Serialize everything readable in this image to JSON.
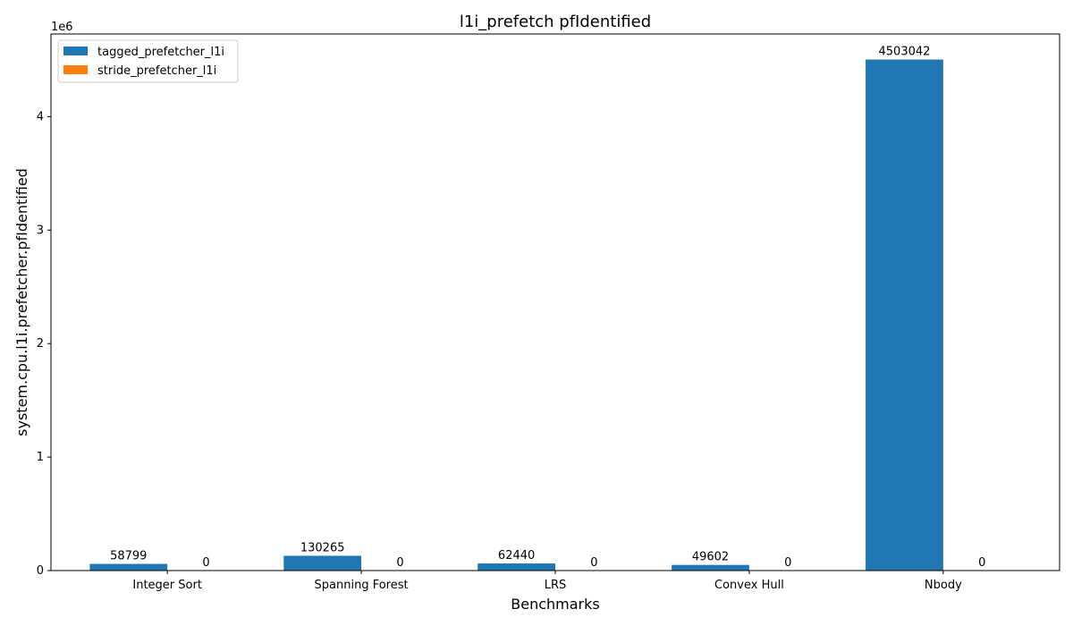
{
  "chart_data": {
    "type": "bar",
    "title": "l1i_prefetch pfIdentified",
    "xlabel": "Benchmarks",
    "ylabel": "system.cpu.l1i.prefetcher.pfIdentified",
    "y_offset_label": "1e6",
    "categories": [
      "Integer Sort",
      "Spanning Forest",
      "LRS",
      "Convex Hull",
      "Nbody"
    ],
    "series": [
      {
        "name": "tagged_prefetcher_l1i",
        "color": "#1f77b4",
        "values": [
          58799,
          130265,
          62440,
          49602,
          4503042
        ]
      },
      {
        "name": "stride_prefetcher_l1i",
        "color": "#ff7f0e",
        "values": [
          0,
          0,
          0,
          0,
          0
        ]
      }
    ],
    "ylim": [
      0,
      4728194
    ],
    "yticks": [
      0,
      1000000,
      2000000,
      3000000,
      4000000
    ],
    "ytick_labels": [
      "0",
      "1",
      "2",
      "3",
      "4"
    ],
    "legend_position": "top-left",
    "grid": false
  }
}
